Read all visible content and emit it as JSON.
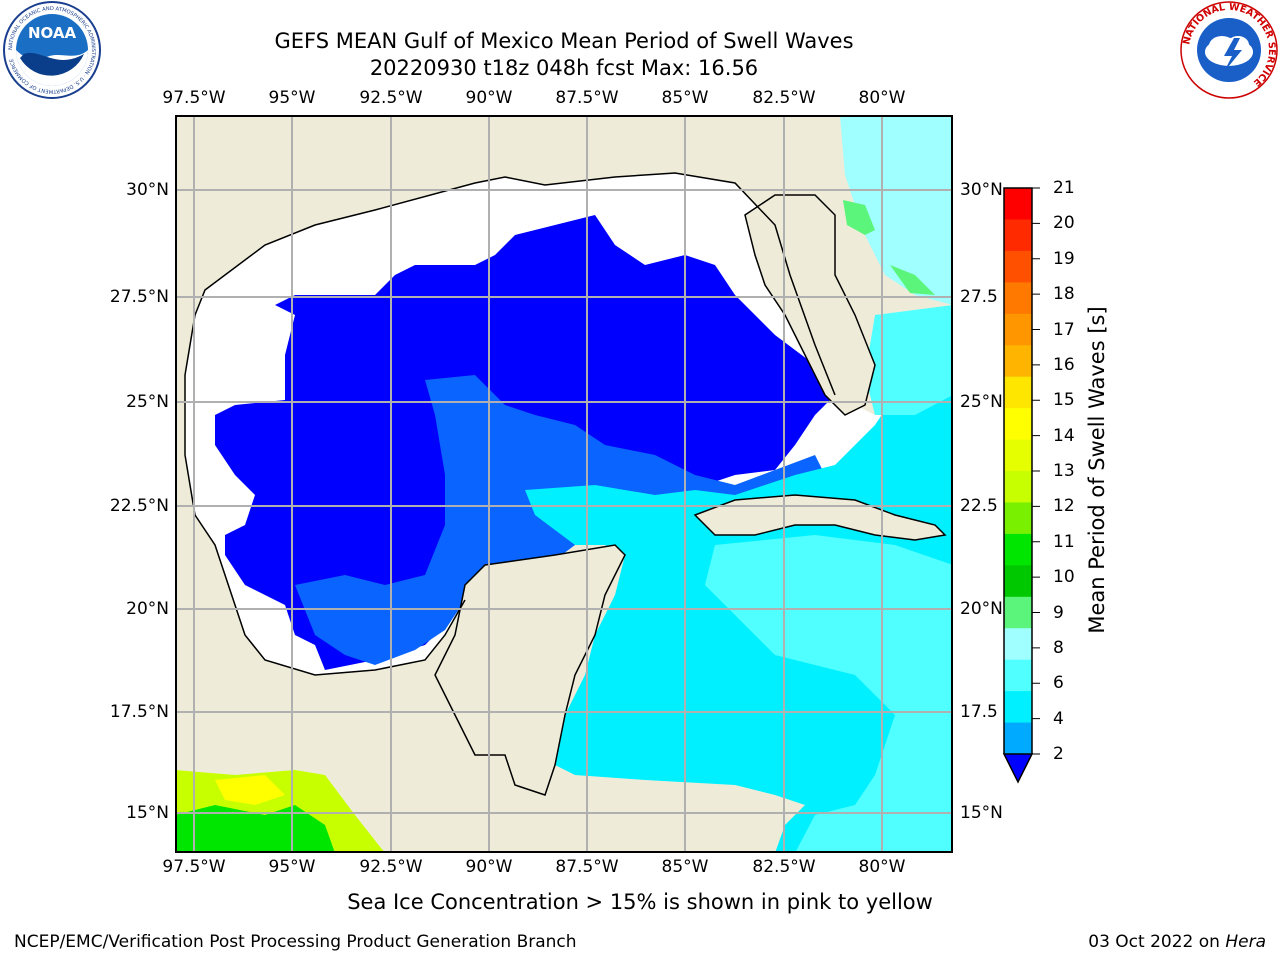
{
  "title_line1": "GEFS MEAN Gulf of Mexico Mean Period of Swell Waves",
  "title_line2": "20220930 t18z 048h fcst   Max: 16.56",
  "lon_ticks": [
    "97.5°W",
    "95°W",
    "92.5°W",
    "90°W",
    "87.5°W",
    "85°W",
    "82.5°W",
    "80°W"
  ],
  "lat_ticks_left": [
    "30°N",
    "27.5°N",
    "25°N",
    "22.5°N",
    "20°N",
    "17.5°N",
    "15°N"
  ],
  "lat_ticks_right": [
    "30°N",
    "27.5",
    "25°N",
    "22.5",
    "20°N",
    "17.5",
    "15°N"
  ],
  "colorbar": {
    "title": "Mean Period of Swell Waves [s]",
    "labels": [
      "21",
      "20",
      "19",
      "18",
      "17",
      "16",
      "15",
      "14",
      "13",
      "12",
      "11",
      "10",
      "9",
      "8",
      "6",
      "4",
      "2"
    ],
    "colors": [
      "#ff0000",
      "#ff2a00",
      "#ff5000",
      "#ff7800",
      "#ff9600",
      "#ffb400",
      "#ffe600",
      "#ffff00",
      "#e6ff00",
      "#c8ff00",
      "#78f000",
      "#00e600",
      "#00c800",
      "#5af57a",
      "#a0ffff",
      "#50ffff",
      "#00f0ff",
      "#00aaff",
      "#0000ff"
    ]
  },
  "logos": {
    "noaa_text": "NOAA",
    "noaa_ring_text": "NATIONAL OCEANIC AND ATMOSPHERIC ADMINISTRATION · U.S. DEPARTMENT OF COMMERCE",
    "nws_ring_text": "NATIONAL WEATHER SERVICE"
  },
  "footer": {
    "note": "Sea Ice Concentration > 15% is shown in pink to yellow",
    "left": "NCEP/EMC/Verification Post Processing Product Generation Branch",
    "right_prefix": "03 Oct 2022 on ",
    "right_host": "Hera"
  },
  "map_colors": {
    "land": "#eeecd9",
    "no_data": "#ffffff",
    "dark_blue": "#0000ff",
    "mid_blue": "#0a64ff",
    "cyan": "#00f0ff",
    "light_cyan": "#50ffff",
    "pale_cyan": "#a0ffff",
    "green": "#5af57a"
  }
}
